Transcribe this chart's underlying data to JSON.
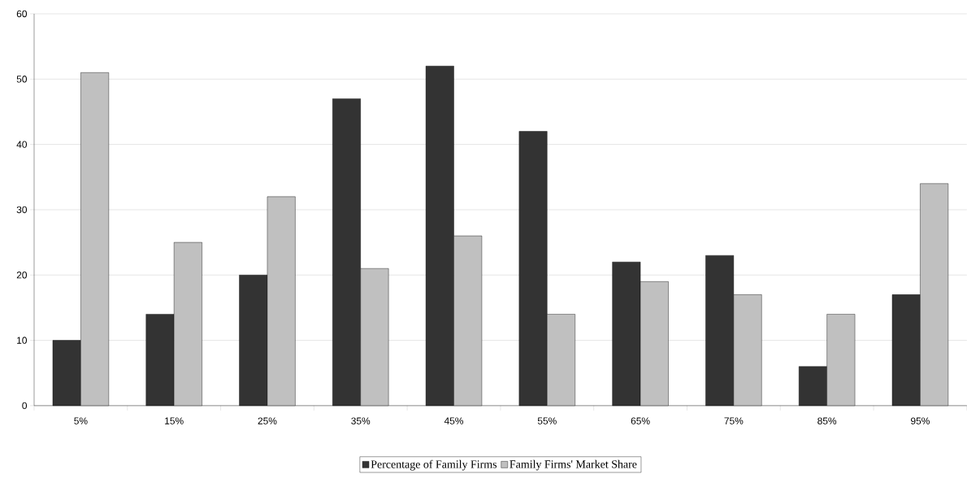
{
  "chart_data": {
    "type": "bar",
    "categories": [
      "5%",
      "15%",
      "25%",
      "35%",
      "45%",
      "55%",
      "65%",
      "75%",
      "85%",
      "95%"
    ],
    "series": [
      {
        "name": "Percentage of Family Firms",
        "color": "#333333",
        "values": [
          10,
          14,
          20,
          47,
          52,
          42,
          22,
          23,
          6,
          17
        ]
      },
      {
        "name": "Family Firms' Market Share",
        "color": "#c0c0c0",
        "values": [
          51,
          25,
          32,
          21,
          26,
          14,
          19,
          17,
          14,
          34
        ]
      }
    ],
    "ylim": [
      0,
      60
    ],
    "yticks": [
      0,
      10,
      20,
      30,
      40,
      50,
      60
    ],
    "grid": "y",
    "legend": "bottom"
  }
}
